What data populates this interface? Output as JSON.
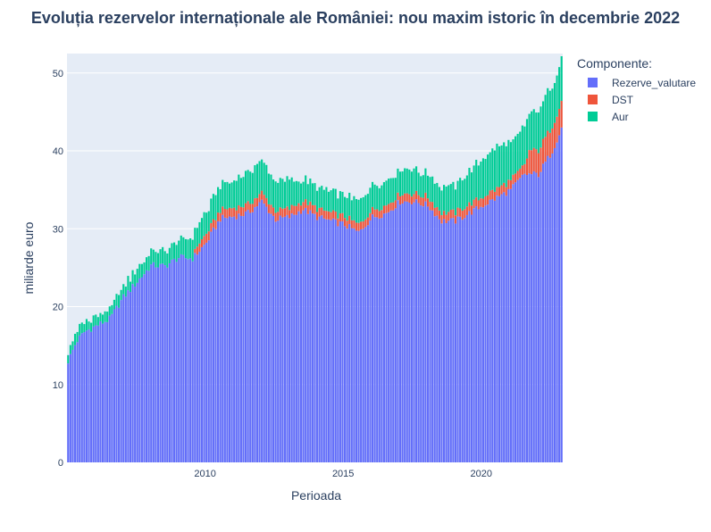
{
  "chart_data": {
    "type": "bar",
    "barmode": "stack",
    "title": "Evoluția rezervelor internaționale ale României: nou maxim istoric în decembrie 2022",
    "xlabel": "Perioada",
    "ylabel": "miliarde euro",
    "xlim": [
      2005.0,
      2022.95
    ],
    "ylim": [
      0,
      52.5
    ],
    "x_ticks": [
      2010,
      2015,
      2020
    ],
    "y_ticks": [
      0,
      10,
      20,
      30,
      40,
      50
    ],
    "legend_title": "Componente:",
    "legend_position": "top-right",
    "x_start": 2005.0,
    "x_step": 0.0833333,
    "points_per_year": 12,
    "series": [
      {
        "name": "Rezerve_valutare",
        "color": "#636efa",
        "anchors": [
          [
            2005.0,
            13
          ],
          [
            2005.3,
            15.5
          ],
          [
            2005.6,
            16.8
          ],
          [
            2006.0,
            17.5
          ],
          [
            2006.5,
            18.4
          ],
          [
            2007.0,
            21.2
          ],
          [
            2007.5,
            23.2
          ],
          [
            2008.0,
            25.3
          ],
          [
            2008.5,
            25.2
          ],
          [
            2009.0,
            26.3
          ],
          [
            2009.5,
            26.2
          ],
          [
            2010.0,
            28.2
          ],
          [
            2010.5,
            31.3
          ],
          [
            2011.0,
            31.6
          ],
          [
            2011.5,
            32.0
          ],
          [
            2012.0,
            33.5
          ],
          [
            2012.5,
            31.2
          ],
          [
            2013.0,
            31.5
          ],
          [
            2013.5,
            32.5
          ],
          [
            2014.0,
            31.5
          ],
          [
            2014.5,
            31.0
          ],
          [
            2015.0,
            30.5
          ],
          [
            2015.5,
            29.5
          ],
          [
            2016.0,
            31.5
          ],
          [
            2016.5,
            32.0
          ],
          [
            2017.0,
            33.5
          ],
          [
            2017.5,
            33.5
          ],
          [
            2018.0,
            33.0
          ],
          [
            2018.5,
            31.0
          ],
          [
            2019.0,
            31.0
          ],
          [
            2019.5,
            32.0
          ],
          [
            2020.0,
            33.0
          ],
          [
            2020.5,
            34.0
          ],
          [
            2021.0,
            35.0
          ],
          [
            2021.5,
            37.0
          ],
          [
            2022.0,
            37.0
          ],
          [
            2022.5,
            40.0
          ],
          [
            2022.95,
            44.0
          ]
        ]
      },
      {
        "name": "DST",
        "color": "#ef553b",
        "anchors": [
          [
            2005.0,
            0
          ],
          [
            2009.5,
            0
          ],
          [
            2009.67,
            1.0
          ],
          [
            2010.0,
            1.1
          ],
          [
            2013.0,
            1.1
          ],
          [
            2016.0,
            1.0
          ],
          [
            2019.0,
            1.1
          ],
          [
            2021.5,
            1.2
          ],
          [
            2021.67,
            3.0
          ],
          [
            2022.95,
            3.4
          ]
        ]
      },
      {
        "name": "Aur",
        "color": "#00cc96",
        "anchors": [
          [
            2005.0,
            1.2
          ],
          [
            2006.0,
            1.3
          ],
          [
            2007.0,
            1.5
          ],
          [
            2008.0,
            1.8
          ],
          [
            2009.0,
            2.3
          ],
          [
            2010.0,
            2.8
          ],
          [
            2011.0,
            3.5
          ],
          [
            2011.7,
            4.3
          ],
          [
            2012.5,
            3.8
          ],
          [
            2013.0,
            3.6
          ],
          [
            2013.5,
            2.8
          ],
          [
            2014.0,
            2.8
          ],
          [
            2015.0,
            2.8
          ],
          [
            2016.0,
            3.0
          ],
          [
            2017.0,
            3.0
          ],
          [
            2018.0,
            3.0
          ],
          [
            2019.0,
            3.5
          ],
          [
            2019.5,
            4.2
          ],
          [
            2020.0,
            5.0
          ],
          [
            2020.5,
            5.4
          ],
          [
            2021.0,
            4.8
          ],
          [
            2022.0,
            5.0
          ],
          [
            2022.95,
            5.6
          ]
        ]
      }
    ]
  }
}
